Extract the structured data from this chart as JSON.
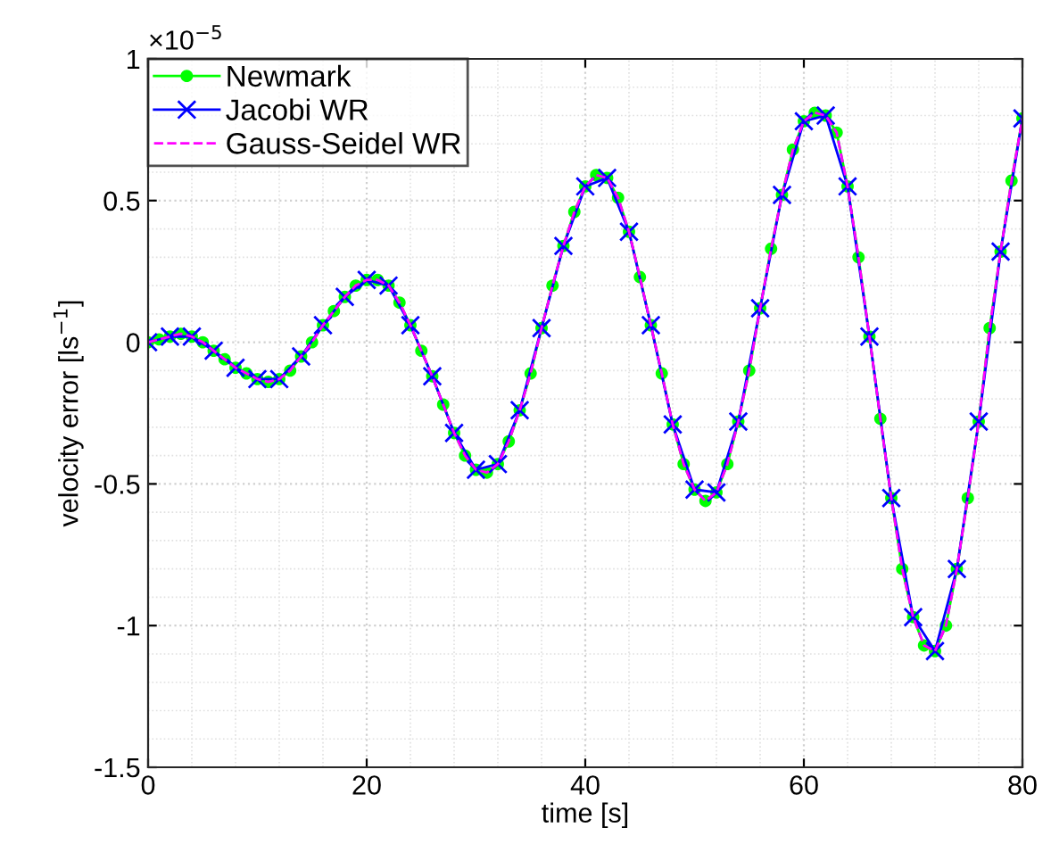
{
  "chart_data": {
    "type": "line",
    "xlabel": "time [s]",
    "ylabel": "velocity error [ls$^{−1}$]",
    "annotations": [
      "×10$^{−5}$"
    ],
    "xlim": [
      0,
      80
    ],
    "ylim": [
      -1.5,
      1
    ],
    "xticks": [
      0,
      20,
      40,
      60,
      80
    ],
    "yticks": [
      -1.5,
      -1,
      -0.5,
      0,
      0.5,
      1
    ],
    "grid": true,
    "legend": "top left",
    "series": [
      {
        "name": "Newmark",
        "color": "#00ff00",
        "marker": "circle",
        "line_style": "solid",
        "x": [
          0,
          1,
          2,
          3,
          4,
          5,
          6,
          7,
          8,
          9,
          10,
          11,
          12,
          13,
          14,
          15,
          16,
          17,
          18,
          19,
          20,
          21,
          22,
          23,
          24,
          25,
          26,
          27,
          28,
          29,
          30,
          31,
          32,
          33,
          34,
          35,
          36,
          37,
          38,
          39,
          40,
          41,
          42,
          43,
          44,
          45,
          46,
          47,
          48,
          49,
          50,
          51,
          52,
          53,
          54,
          55,
          56,
          57,
          58,
          59,
          60,
          61,
          62,
          63,
          64,
          65,
          66,
          67,
          68,
          69,
          70,
          71,
          72,
          73,
          74,
          75,
          76,
          77,
          78,
          79,
          80
        ],
        "values": [
          0,
          0.01,
          0.02,
          0.03,
          0.02,
          0,
          -0.03,
          -0.06,
          -0.09,
          -0.11,
          -0.13,
          -0.14,
          -0.13,
          -0.1,
          -0.05,
          0,
          0.06,
          0.11,
          0.16,
          0.2,
          0.22,
          0.22,
          0.2,
          0.14,
          0.06,
          -0.03,
          -0.12,
          -0.22,
          -0.32,
          -0.4,
          -0.45,
          -0.46,
          -0.43,
          -0.35,
          -0.24,
          -0.11,
          0.05,
          0.2,
          0.34,
          0.46,
          0.55,
          0.59,
          0.58,
          0.51,
          0.39,
          0.23,
          0.06,
          -0.11,
          -0.29,
          -0.43,
          -0.52,
          -0.56,
          -0.53,
          -0.43,
          -0.28,
          -0.1,
          0.12,
          0.33,
          0.52,
          0.68,
          0.78,
          0.81,
          0.8,
          0.74,
          0.55,
          0.3,
          0.02,
          -0.27,
          -0.55,
          -0.8,
          -0.97,
          -1.07,
          -1.09,
          -1,
          -0.8,
          -0.55,
          -0.28,
          0.05,
          0.32,
          0.57,
          0.79
        ]
      },
      {
        "name": "Jacobi WR",
        "color": "#0000ff",
        "marker": "cross",
        "line_style": "solid",
        "x": [
          0,
          2,
          4,
          6,
          8,
          10,
          12,
          14,
          16,
          18,
          20,
          22,
          24,
          26,
          28,
          30,
          32,
          34,
          36,
          38,
          40,
          42,
          44,
          46,
          48,
          50,
          52,
          54,
          56,
          58,
          60,
          62,
          64,
          66,
          68,
          70,
          72,
          74,
          76,
          78,
          80
        ],
        "values": [
          0,
          0.02,
          0.02,
          -0.03,
          -0.09,
          -0.13,
          -0.13,
          -0.05,
          0.06,
          0.16,
          0.22,
          0.2,
          0.06,
          -0.12,
          -0.32,
          -0.45,
          -0.43,
          -0.24,
          0.05,
          0.34,
          0.55,
          0.58,
          0.39,
          0.06,
          -0.29,
          -0.52,
          -0.53,
          -0.28,
          0.12,
          0.52,
          0.78,
          0.8,
          0.55,
          0.02,
          -0.55,
          -0.97,
          -1.09,
          -0.8,
          -0.28,
          0.32,
          0.79
        ]
      },
      {
        "name": "Gauss-Seidel WR",
        "color": "#ff00ff",
        "marker": "none",
        "line_style": "dashed",
        "x": [
          0,
          1,
          2,
          3,
          4,
          5,
          6,
          7,
          8,
          9,
          10,
          11,
          12,
          13,
          14,
          15,
          16,
          17,
          18,
          19,
          20,
          21,
          22,
          23,
          24,
          25,
          26,
          27,
          28,
          29,
          30,
          31,
          32,
          33,
          34,
          35,
          36,
          37,
          38,
          39,
          40,
          41,
          42,
          43,
          44,
          45,
          46,
          47,
          48,
          49,
          50,
          51,
          52,
          53,
          54,
          55,
          56,
          57,
          58,
          59,
          60,
          61,
          62,
          63,
          64,
          65,
          66,
          67,
          68,
          69,
          70,
          71,
          72,
          73,
          74,
          75,
          76,
          77,
          78,
          79,
          80
        ],
        "values": [
          0,
          0.01,
          0.02,
          0.03,
          0.02,
          0,
          -0.03,
          -0.06,
          -0.09,
          -0.11,
          -0.13,
          -0.14,
          -0.13,
          -0.1,
          -0.05,
          0,
          0.06,
          0.11,
          0.16,
          0.2,
          0.22,
          0.22,
          0.2,
          0.14,
          0.06,
          -0.03,
          -0.12,
          -0.22,
          -0.32,
          -0.4,
          -0.45,
          -0.46,
          -0.43,
          -0.35,
          -0.24,
          -0.11,
          0.05,
          0.2,
          0.34,
          0.46,
          0.55,
          0.59,
          0.58,
          0.51,
          0.39,
          0.23,
          0.06,
          -0.11,
          -0.29,
          -0.43,
          -0.52,
          -0.56,
          -0.53,
          -0.43,
          -0.28,
          -0.1,
          0.12,
          0.33,
          0.52,
          0.68,
          0.78,
          0.81,
          0.8,
          0.74,
          0.55,
          0.3,
          0.02,
          -0.27,
          -0.55,
          -0.8,
          -0.97,
          -1.07,
          -1.09,
          -1,
          -0.8,
          -0.55,
          -0.28,
          0.05,
          0.32,
          0.57,
          0.79
        ]
      }
    ]
  }
}
